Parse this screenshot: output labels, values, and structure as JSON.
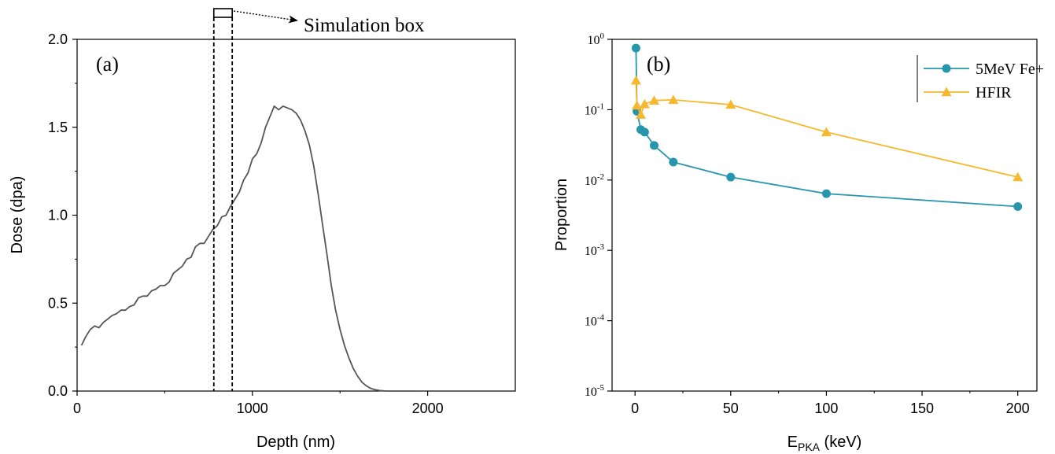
{
  "chart_data": [
    {
      "type": "line",
      "panel_label": "(a)",
      "xlabel": "Depth (nm)",
      "ylabel": "Dose (dpa)",
      "xlim": [
        0,
        2500
      ],
      "ylim": [
        0,
        2.0
      ],
      "xticks": [
        "0",
        "1000",
        "2000"
      ],
      "yticks": [
        "0.0",
        "0.5",
        "1.0",
        "1.5",
        "2.0"
      ],
      "annotation": "Simulation box",
      "simulation_box_range": [
        780,
        885
      ],
      "grid": false,
      "series": [
        {
          "color": "#555555",
          "x": [
            25,
            50,
            75,
            100,
            125,
            150,
            175,
            200,
            225,
            250,
            275,
            300,
            325,
            350,
            375,
            400,
            425,
            450,
            475,
            500,
            525,
            550,
            575,
            600,
            625,
            650,
            675,
            700,
            725,
            750,
            775,
            800,
            825,
            850,
            875,
            900,
            925,
            950,
            975,
            1000,
            1025,
            1050,
            1075,
            1100,
            1125,
            1150,
            1175,
            1200,
            1225,
            1250,
            1275,
            1300,
            1325,
            1350,
            1375,
            1400,
            1425,
            1450,
            1475,
            1500,
            1525,
            1550,
            1575,
            1600,
            1625,
            1650,
            1675,
            1700,
            1725,
            1750,
            1775,
            1800,
            1825,
            1850,
            1875,
            1900,
            1925
          ],
          "y": [
            0.26,
            0.31,
            0.35,
            0.37,
            0.36,
            0.39,
            0.41,
            0.43,
            0.44,
            0.46,
            0.46,
            0.48,
            0.49,
            0.53,
            0.54,
            0.54,
            0.57,
            0.58,
            0.6,
            0.6,
            0.62,
            0.67,
            0.69,
            0.71,
            0.75,
            0.76,
            0.82,
            0.84,
            0.84,
            0.88,
            0.92,
            0.94,
            0.99,
            1.0,
            1.05,
            1.09,
            1.13,
            1.2,
            1.24,
            1.32,
            1.35,
            1.41,
            1.5,
            1.56,
            1.62,
            1.6,
            1.62,
            1.61,
            1.6,
            1.58,
            1.54,
            1.48,
            1.4,
            1.28,
            1.12,
            0.95,
            0.78,
            0.6,
            0.46,
            0.35,
            0.26,
            0.19,
            0.13,
            0.085,
            0.05,
            0.03,
            0.015,
            0.008,
            0.003,
            0.001,
            0.0,
            0.0,
            0.0,
            0.0,
            0.0,
            0.0,
            0.0
          ]
        }
      ]
    },
    {
      "type": "line",
      "panel_label": "(b)",
      "xlabel": "E",
      "xlabel_sub": "PKA",
      "xlabel_unit": " (keV)",
      "ylabel": "Proportion",
      "xlim": [
        -12,
        210
      ],
      "ylim_log10": [
        -5,
        0
      ],
      "y_scale": "log",
      "xticks": [
        "0",
        "50",
        "100",
        "150",
        "200"
      ],
      "yticks": [
        {
          "base": "10",
          "exp": "0"
        },
        {
          "base": "10",
          "exp": "-1"
        },
        {
          "base": "10",
          "exp": "-2"
        },
        {
          "base": "10",
          "exp": "-3"
        },
        {
          "base": "10",
          "exp": "-4"
        },
        {
          "base": "10",
          "exp": "-5"
        }
      ],
      "legend_position": "top-right",
      "grid": false,
      "series": [
        {
          "name": "5MeV Fe+",
          "marker": "circle",
          "color": "#2796ad",
          "x": [
            0.5,
            1,
            3,
            5,
            10,
            20,
            50,
            100,
            200
          ],
          "y": [
            0.75,
            0.095,
            0.052,
            0.048,
            0.031,
            0.018,
            0.011,
            0.0064,
            0.0042
          ]
        },
        {
          "name": "HFIR",
          "marker": "triangle",
          "color": "#f5b82e",
          "x": [
            0.5,
            1,
            3,
            5,
            10,
            20,
            50,
            100,
            200
          ],
          "y": [
            0.26,
            0.115,
            0.085,
            0.12,
            0.135,
            0.138,
            0.118,
            0.048,
            0.011
          ]
        }
      ]
    }
  ]
}
